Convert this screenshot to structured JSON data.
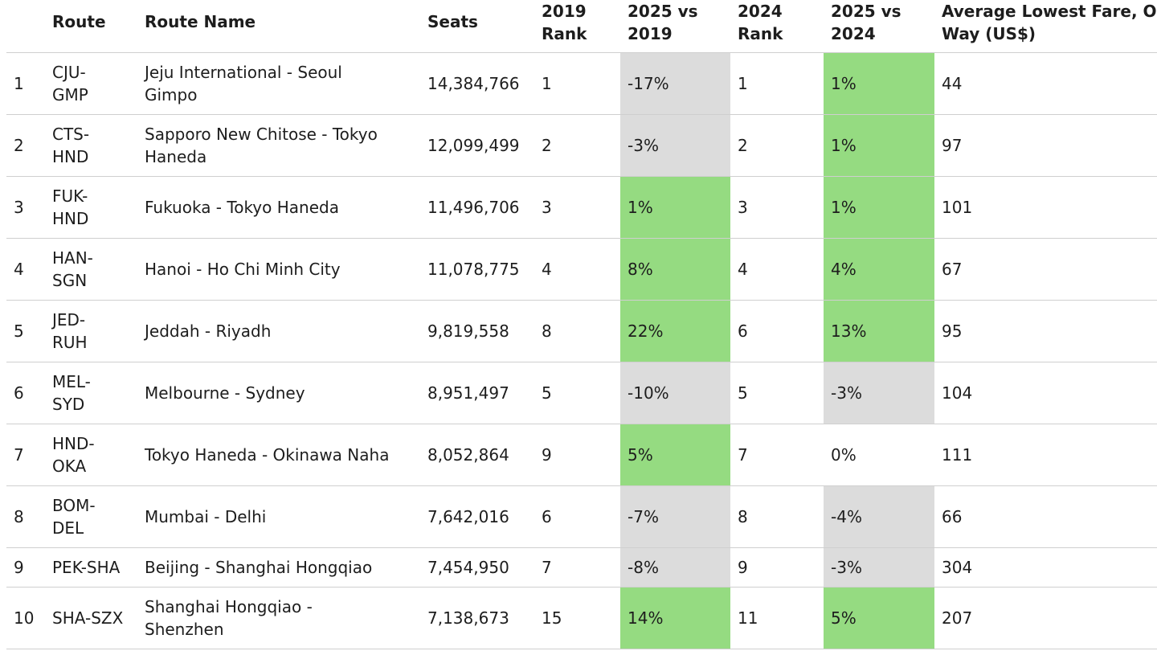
{
  "table": {
    "headers": {
      "idx": "",
      "route": "Route",
      "route_name": "Route Name",
      "seats": "Seats",
      "rank_2019": [
        "2019",
        "Rank"
      ],
      "vs_2019": [
        "2025 vs",
        "2019"
      ],
      "rank_2024": [
        "2024",
        "Rank"
      ],
      "vs_2024": [
        "2025 vs",
        "2024"
      ],
      "fare": [
        "Average Lowest Fare, One",
        "Way (US$)"
      ]
    },
    "rows": [
      {
        "idx": "1",
        "route": [
          "CJU-",
          "GMP"
        ],
        "name": [
          "Jeju International - Seoul",
          "Gimpo"
        ],
        "seats": "14,384,766",
        "rank_2019": "1",
        "vs_2019": "-17%",
        "vs_2019_fill": "neg",
        "rank_2024": "1",
        "vs_2024": "1%",
        "vs_2024_fill": "pos",
        "fare": "44"
      },
      {
        "idx": "2",
        "route": [
          "CTS-",
          "HND"
        ],
        "name": [
          "Sapporo New Chitose - Tokyo",
          "Haneda"
        ],
        "seats": "12,099,499",
        "rank_2019": "2",
        "vs_2019": "-3%",
        "vs_2019_fill": "neg",
        "rank_2024": "2",
        "vs_2024": "1%",
        "vs_2024_fill": "pos",
        "fare": "97"
      },
      {
        "idx": "3",
        "route": [
          "FUK-",
          "HND"
        ],
        "name": [
          "Fukuoka - Tokyo Haneda"
        ],
        "seats": "11,496,706",
        "rank_2019": "3",
        "vs_2019": "1%",
        "vs_2019_fill": "pos",
        "rank_2024": "3",
        "vs_2024": "1%",
        "vs_2024_fill": "pos",
        "fare": "101"
      },
      {
        "idx": "4",
        "route": [
          "HAN-",
          "SGN"
        ],
        "name": [
          "Hanoi - Ho Chi Minh City"
        ],
        "seats": "11,078,775",
        "rank_2019": "4",
        "vs_2019": "8%",
        "vs_2019_fill": "pos",
        "rank_2024": "4",
        "vs_2024": "4%",
        "vs_2024_fill": "pos",
        "fare": "67"
      },
      {
        "idx": "5",
        "route": [
          "JED-",
          "RUH"
        ],
        "name": [
          "Jeddah - Riyadh"
        ],
        "seats": "9,819,558",
        "rank_2019": "8",
        "vs_2019": "22%",
        "vs_2019_fill": "pos",
        "rank_2024": "6",
        "vs_2024": "13%",
        "vs_2024_fill": "pos",
        "fare": "95"
      },
      {
        "idx": "6",
        "route": [
          "MEL-",
          "SYD"
        ],
        "name": [
          "Melbourne - Sydney"
        ],
        "seats": "8,951,497",
        "rank_2019": "5",
        "vs_2019": "-10%",
        "vs_2019_fill": "neg",
        "rank_2024": "5",
        "vs_2024": "-3%",
        "vs_2024_fill": "neg",
        "fare": "104"
      },
      {
        "idx": "7",
        "route": [
          "HND-",
          "OKA"
        ],
        "name": [
          "Tokyo Haneda - Okinawa Naha"
        ],
        "seats": "8,052,864",
        "rank_2019": "9",
        "vs_2019": "5%",
        "vs_2019_fill": "pos",
        "rank_2024": "7",
        "vs_2024": "0%",
        "vs_2024_fill": "none",
        "fare": "111"
      },
      {
        "idx": "8",
        "route": [
          "BOM-",
          "DEL"
        ],
        "name": [
          "Mumbai - Delhi"
        ],
        "seats": "7,642,016",
        "rank_2019": "6",
        "vs_2019": "-7%",
        "vs_2019_fill": "neg",
        "rank_2024": "8",
        "vs_2024": "-4%",
        "vs_2024_fill": "neg",
        "fare": "66"
      },
      {
        "idx": "9",
        "route": [
          "PEK-SHA"
        ],
        "name": [
          "Beijing - Shanghai Hongqiao"
        ],
        "seats": "7,454,950",
        "rank_2019": "7",
        "vs_2019": "-8%",
        "vs_2019_fill": "neg",
        "rank_2024": "9",
        "vs_2024": "-3%",
        "vs_2024_fill": "neg",
        "fare": "304"
      },
      {
        "idx": "10",
        "route": [
          "SHA-SZX"
        ],
        "name": [
          "Shanghai Hongqiao -",
          "Shenzhen"
        ],
        "seats": "7,138,673",
        "rank_2019": "15",
        "vs_2019": "14%",
        "vs_2019_fill": "pos",
        "rank_2024": "11",
        "vs_2024": "5%",
        "vs_2024_fill": "pos",
        "fare": "207"
      }
    ],
    "fill_colors": {
      "pos": "#95db81",
      "neg": "#dcdcdc"
    }
  }
}
